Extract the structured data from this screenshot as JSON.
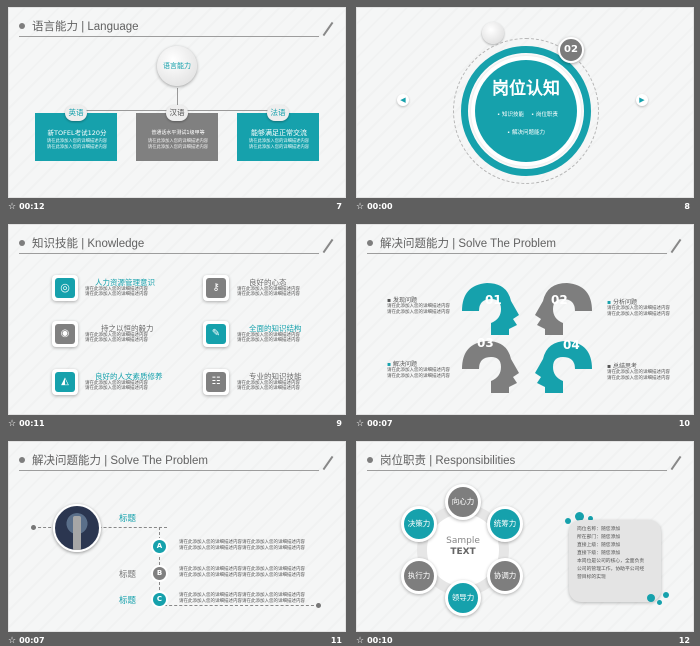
{
  "slides": [
    {
      "index": 1,
      "title": "语言能力 | Language",
      "time": "00:12",
      "num": "7",
      "center": "语言能力",
      "boxes": [
        {
          "label": "英语",
          "line1": "新TOFEL考试120分",
          "line2": "请在此添加入您的详细描述内容",
          "line3": "请在此添加入您的详细描述内容"
        },
        {
          "label": "汉语",
          "line1": "普通话水平测试1级甲等",
          "line2": "请在此添加入您的详细描述内容",
          "line3": "请在此添加入您的详细描述内容"
        },
        {
          "label": "法语",
          "line1": "能够满足正常交流",
          "line2": "请在此添加入您的详细描述内容",
          "line3": "请在此添加入您的详细描述内容"
        }
      ]
    },
    {
      "index": 2,
      "time": "00:00",
      "num": "8",
      "badge": "02",
      "heading": "岗位认知",
      "items": [
        "知识技能",
        "岗位职责",
        "解决问题能力"
      ]
    },
    {
      "index": 3,
      "title": "知识技能 | Knowledge",
      "time": "00:11",
      "num": "9",
      "items": [
        {
          "label": "人力资源管理意识",
          "desc1": "请在此添加入您的详细描述内容",
          "desc2": "请在此添加入您的详细描述内容",
          "icon": "bulb-icon"
        },
        {
          "label": "良好的心态",
          "desc1": "请在此添加入您的详细描述内容",
          "desc2": "请在此添加入您的详细描述内容",
          "icon": "key-icon"
        },
        {
          "label": "持之以恒的毅力",
          "desc1": "请在此添加入您的详细描述内容",
          "desc2": "请在此添加入您的详细描述内容",
          "icon": "target-icon"
        },
        {
          "label": "全面的知识结构",
          "desc1": "请在此添加入您的详细描述内容",
          "desc2": "请在此添加入您的详细描述内容",
          "icon": "brush-icon"
        },
        {
          "label": "良好的人文素质修养",
          "desc1": "请在此添加入您的详细描述内容",
          "desc2": "请在此添加入您的详细描述内容",
          "icon": "megaphone-icon"
        },
        {
          "label": "专业的知识技能",
          "desc1": "请在此添加入您的详细描述内容",
          "desc2": "请在此添加入您的详细描述内容",
          "icon": "sliders-icon"
        }
      ]
    },
    {
      "index": 4,
      "title": "解决问题能力 | Solve The Problem",
      "time": "00:07",
      "num": "10",
      "nums": [
        "01",
        "02",
        "03",
        "04"
      ],
      "labels": [
        {
          "t": "发现问题",
          "d1": "请在此添加入您的详细描述内容",
          "d2": "请在此添加入您的详细描述内容"
        },
        {
          "t": "分析问题",
          "d1": "请在此添加入您的详细描述内容",
          "d2": "请在此添加入您的详细描述内容"
        },
        {
          "t": "解决问题",
          "d1": "请在此添加入您的详细描述内容",
          "d2": "请在此添加入您的详细描述内容"
        },
        {
          "t": "总结思考",
          "d1": "请在此添加入您的详细描述内容",
          "d2": "请在此添加入您的详细描述内容"
        }
      ]
    },
    {
      "index": 5,
      "title": "解决问题能力 | Solve The Problem",
      "time": "00:07",
      "num": "11",
      "rows": [
        {
          "label": "标题",
          "badge": "A",
          "text": "请在此添加入您的详细描述内容请在此添加入您的详细描述内容",
          "text2": "请在此添加入您的详细描述内容请在此添加入您的详细描述内容"
        },
        {
          "label": "标题",
          "badge": "B",
          "text": "请在此添加入您的详细描述内容请在此添加入您的详细描述内容",
          "text2": "请在此添加入您的详细描述内容请在此添加入您的详细描述内容"
        },
        {
          "label": "标题",
          "badge": "C",
          "text": "请在此添加入您的详细描述内容请在此添加入您的详细描述内容",
          "text2": "请在此添加入您的详细描述内容请在此添加入您的详细描述内容"
        }
      ]
    },
    {
      "index": 6,
      "title": "岗位职责 | Responsibilities",
      "time": "00:10",
      "num": "12",
      "center1": "Sample",
      "center2": "TEXT",
      "petals": [
        "向心力",
        "统筹力",
        "协调力",
        "领导力",
        "执行力",
        "决策力"
      ],
      "card": [
        "岗位名称：随您添加",
        "所在部门：随您添加",
        "直接上级：随您添加",
        "直接下级：随您添加",
        "本岗位是公司的核心，全面负责",
        "公司的管理工作，协助平公司经",
        "营目标的实现"
      ]
    }
  ]
}
